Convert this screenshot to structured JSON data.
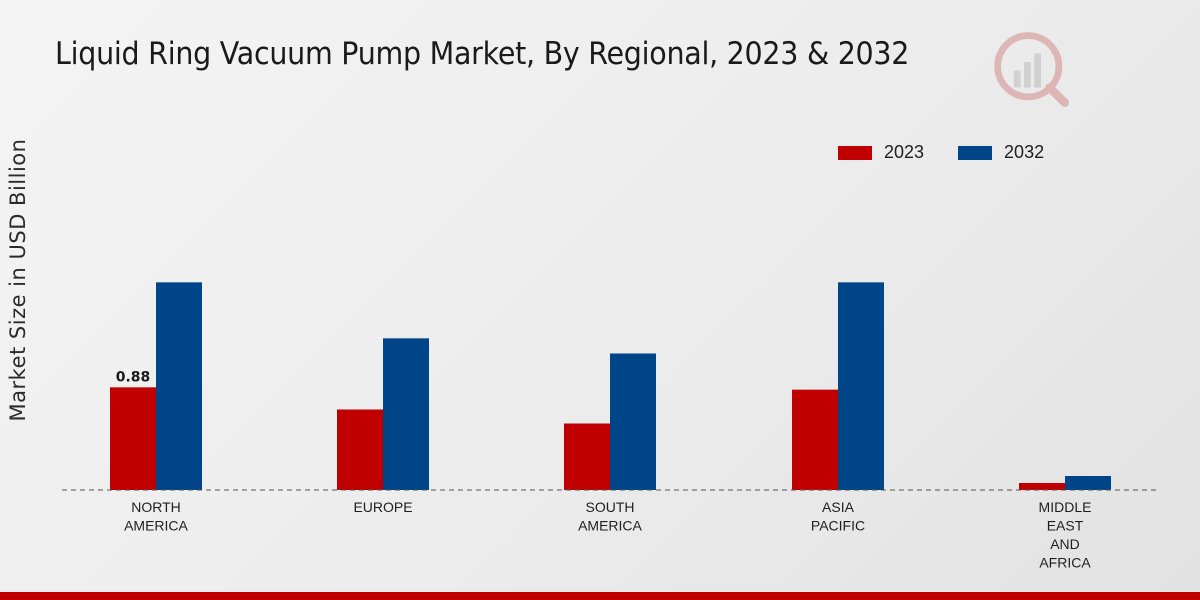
{
  "chart_data": {
    "type": "bar",
    "title": "Liquid Ring Vacuum Pump Market, By Regional, 2023 & 2032",
    "xlabel": "",
    "ylabel": "Market Size in USD Billion",
    "categories": [
      [
        "NORTH",
        "AMERICA"
      ],
      [
        "EUROPE"
      ],
      [
        "SOUTH",
        "AMERICA"
      ],
      [
        "ASIA",
        "PACIFIC"
      ],
      [
        "MIDDLE",
        "EAST",
        "AND",
        "AFRICA"
      ]
    ],
    "series": [
      {
        "name": "2023",
        "color": "#c00000",
        "values": [
          0.88,
          0.69,
          0.57,
          0.86,
          0.06
        ]
      },
      {
        "name": "2032",
        "color": "#004587",
        "values": [
          1.78,
          1.3,
          1.17,
          1.78,
          0.12
        ]
      }
    ],
    "data_labels": [
      {
        "series": 0,
        "index": 0,
        "text": "0.88"
      }
    ],
    "ylim": [
      0,
      3.0
    ],
    "grid": false,
    "legend_position": "top-right"
  }
}
